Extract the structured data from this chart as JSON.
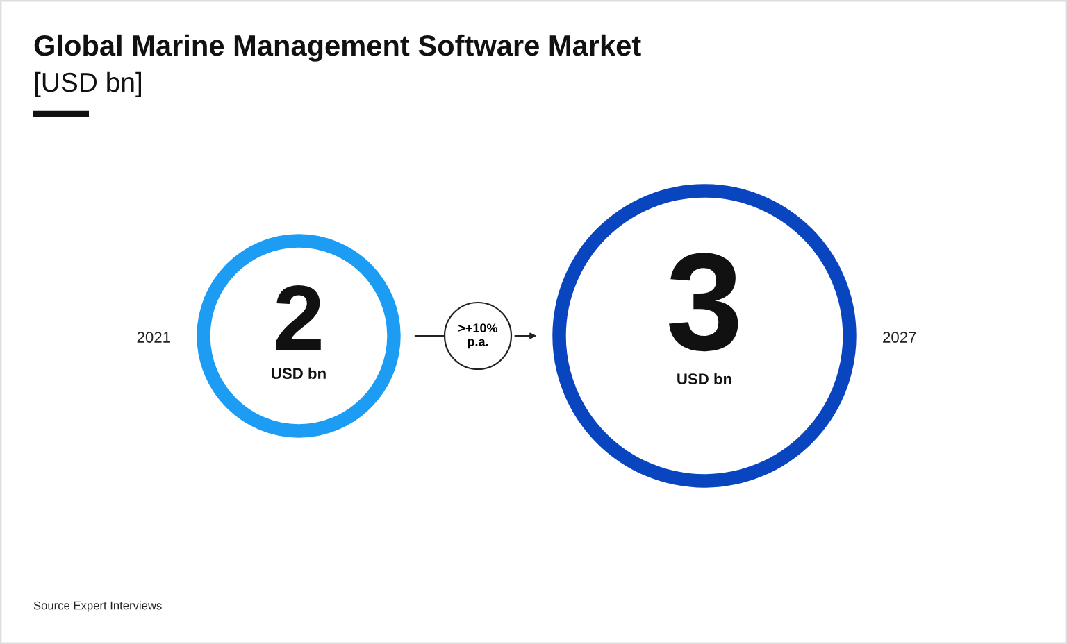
{
  "chart_data": {
    "type": "other",
    "title": "Global Marine Management Software Market",
    "subtitle": "[USD bn]",
    "categories": [
      "2021",
      "2027"
    ],
    "values": [
      2,
      3
    ],
    "colors": [
      "#1c9cf2",
      "#0a45c0"
    ],
    "data_labels": true,
    "annotations": [
      "USD bn",
      "USD bn",
      ">+10%\np.a.",
      "Source Expert Interviews"
    ]
  }
}
